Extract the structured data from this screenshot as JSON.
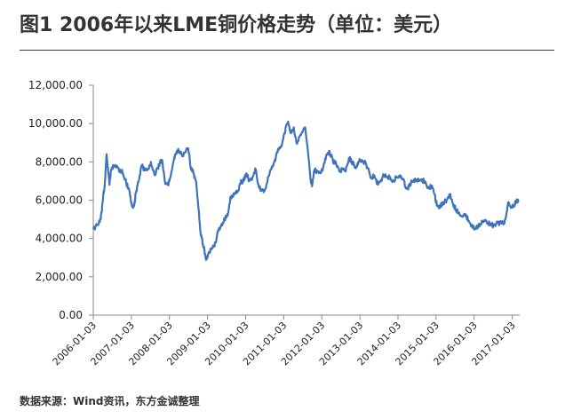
{
  "title": "图1  2006年以来LME铜价格走势（单位：美元）",
  "source": "数据来源：Wind资讯，东方金诚整理",
  "chart_data": {
    "type": "line",
    "title": "",
    "xlabel": "",
    "ylabel": "",
    "ylim": [
      0,
      12000
    ],
    "yticks": [
      "0.00",
      "2,000.00",
      "4,000.00",
      "6,000.00",
      "8,000.00",
      "10,000.00",
      "12,000.00"
    ],
    "xticks": [
      "2006-01-03",
      "2007-01-03",
      "2008-01-03",
      "2009-01-03",
      "2010-01-03",
      "2011-01-03",
      "2012-01-03",
      "2013-01-03",
      "2014-01-03",
      "2015-01-03",
      "2016-01-03",
      "2017-01-03"
    ],
    "grid": false,
    "legend": "none",
    "line_color": "#3f74b8",
    "series": [
      {
        "x": [
          "2006-01-03",
          "2006-02-15",
          "2006-03-15",
          "2006-04-05",
          "2006-04-25",
          "2006-05-11",
          "2006-05-25",
          "2006-06-08",
          "2006-06-25",
          "2006-07-15",
          "2006-08-10",
          "2006-09-15",
          "2006-10-15",
          "2006-11-15",
          "2006-12-15",
          "2007-01-03",
          "2007-01-20",
          "2007-02-01",
          "2007-02-20",
          "2007-03-15",
          "2007-04-10",
          "2007-05-10",
          "2007-06-10",
          "2007-07-10",
          "2007-08-15",
          "2007-09-15",
          "2007-10-05",
          "2007-10-25",
          "2007-11-20",
          "2007-12-20",
          "2008-01-03",
          "2008-02-10",
          "2008-03-05",
          "2008-04-01",
          "2008-05-05",
          "2008-06-05",
          "2008-07-02",
          "2008-07-25",
          "2008-08-20",
          "2008-09-15",
          "2008-10-10",
          "2008-10-27",
          "2008-11-20",
          "2008-12-10",
          "2008-12-24",
          "2009-01-20",
          "2009-02-20",
          "2009-03-20",
          "2009-04-20",
          "2009-05-20",
          "2009-06-15",
          "2009-07-15",
          "2009-08-15",
          "2009-09-15",
          "2009-10-15",
          "2009-11-15",
          "2009-12-15",
          "2010-01-10",
          "2010-02-05",
          "2010-03-10",
          "2010-04-10",
          "2010-05-10",
          "2010-06-08",
          "2010-07-05",
          "2010-08-05",
          "2010-09-05",
          "2010-10-05",
          "2010-11-05",
          "2010-12-05",
          "2011-01-10",
          "2011-02-14",
          "2011-03-15",
          "2011-04-10",
          "2011-05-05",
          "2011-06-10",
          "2011-07-28",
          "2011-09-01",
          "2011-09-20",
          "2011-10-04",
          "2011-10-25",
          "2011-11-20",
          "2011-12-20",
          "2012-01-20",
          "2012-02-20",
          "2012-03-20",
          "2012-04-20",
          "2012-05-20",
          "2012-06-20",
          "2012-07-20",
          "2012-08-20",
          "2012-09-20",
          "2012-10-20",
          "2012-11-20",
          "2012-12-20",
          "2013-01-20",
          "2013-02-15",
          "2013-03-15",
          "2013-04-20",
          "2013-05-20",
          "2013-06-25",
          "2013-07-20",
          "2013-08-20",
          "2013-09-20",
          "2013-10-20",
          "2013-11-20",
          "2013-12-20",
          "2014-01-20",
          "2014-02-20",
          "2014-03-20",
          "2014-04-20",
          "2014-05-20",
          "2014-06-20",
          "2014-07-20",
          "2014-08-20",
          "2014-09-20",
          "2014-10-20",
          "2014-11-20",
          "2014-12-20",
          "2015-01-15",
          "2015-02-15",
          "2015-03-15",
          "2015-04-15",
          "2015-05-15",
          "2015-06-15",
          "2015-07-15",
          "2015-08-20",
          "2015-09-20",
          "2015-10-20",
          "2015-11-22",
          "2015-12-20",
          "2016-01-15",
          "2016-02-15",
          "2016-03-15",
          "2016-04-15",
          "2016-05-15",
          "2016-06-15",
          "2016-07-15",
          "2016-08-15",
          "2016-09-15",
          "2016-10-15",
          "2016-11-11",
          "2016-11-28",
          "2016-12-20",
          "2017-01-15",
          "2017-02-15",
          "2017-03-01"
        ],
        "y": [
          4500,
          4700,
          5000,
          6000,
          7000,
          8400,
          7500,
          6800,
          7600,
          7800,
          7700,
          7600,
          7400,
          6900,
          6500,
          5900,
          5600,
          5800,
          6500,
          7000,
          7800,
          7600,
          7600,
          8000,
          7300,
          7700,
          8000,
          8100,
          7000,
          6800,
          7000,
          8000,
          8400,
          8600,
          8300,
          8500,
          8700,
          7700,
          7400,
          7000,
          5500,
          4300,
          3700,
          3200,
          2900,
          3300,
          3500,
          3800,
          4500,
          4700,
          5000,
          5200,
          6200,
          6300,
          6400,
          6900,
          7000,
          7400,
          7000,
          7200,
          7600,
          6700,
          6500,
          6500,
          7200,
          7600,
          8000,
          8500,
          8800,
          9500,
          10100,
          9500,
          9800,
          9000,
          9400,
          9800,
          8100,
          7000,
          6800,
          7600,
          7500,
          7400,
          7800,
          8400,
          8500,
          8000,
          7900,
          7500,
          7600,
          7500,
          8200,
          8000,
          7700,
          8000,
          8100,
          8000,
          7700,
          7200,
          7300,
          6800,
          7000,
          7300,
          7200,
          7200,
          7000,
          7200,
          7200,
          7100,
          6600,
          6700,
          7000,
          7000,
          7000,
          7100,
          6900,
          6700,
          6700,
          6300,
          5700,
          5700,
          5900,
          6000,
          6300,
          5800,
          5500,
          5200,
          5200,
          5200,
          4800,
          4600,
          4500,
          4600,
          4900,
          4900,
          4800,
          4700,
          4700,
          4800,
          4800,
          4800,
          5400,
          5900,
          5600,
          5700,
          6000,
          5900
        ]
      }
    ]
  }
}
